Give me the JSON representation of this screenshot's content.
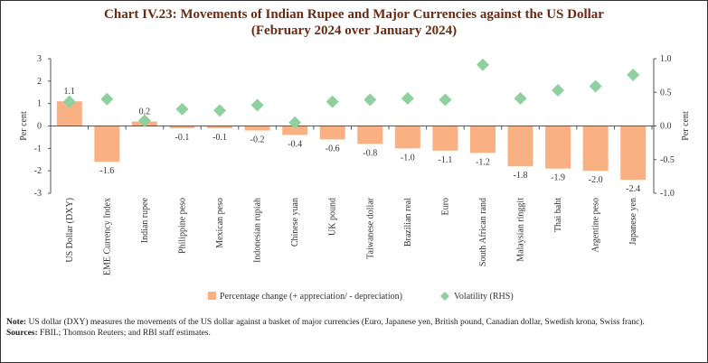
{
  "title_line1": "Chart IV.23: Movements of Indian Rupee and Major Currencies against the US Dollar",
  "title_line2": "(February 2024 over January 2024)",
  "chart_data": {
    "type": "bar+scatter",
    "categories": [
      "US Dollar (DXY)",
      "EME Currency Index",
      "Indian rupee",
      "Philippine peso",
      "Mexican peso",
      "Indonesian rupiah",
      "Chinese yuan",
      "UK pound",
      "Taiwanese dollar",
      "Brazilian real",
      "Euro",
      "South African rand",
      "Malaysian ringgit",
      "Thai baht",
      "Argentine peso",
      "Japanese yen"
    ],
    "series": [
      {
        "name": "Percentage change (+ appreciation/ - depreciation)",
        "type": "bar",
        "axis": "left",
        "color": "#f9b183",
        "values": [
          1.1,
          -1.6,
          0.2,
          -0.1,
          -0.1,
          -0.2,
          -0.4,
          -0.6,
          -0.8,
          -1.0,
          -1.1,
          -1.2,
          -1.8,
          -1.9,
          -2.0,
          -2.4
        ],
        "labels": [
          "1.1",
          "-1.6",
          "0.2",
          "-0.1",
          "-0.1",
          "-0.2",
          "-0.4",
          "-0.6",
          "-0.8",
          "-1.0",
          "-1.1",
          "-1.2",
          "-1.8",
          "-1.9",
          "-2.0",
          "-2.4"
        ]
      },
      {
        "name": "Volatility (RHS)",
        "type": "scatter",
        "marker": "diamond",
        "axis": "right",
        "color": "#8fd19e",
        "values": [
          0.36,
          0.4,
          0.08,
          0.25,
          0.23,
          0.31,
          0.05,
          0.36,
          0.39,
          0.41,
          0.39,
          0.91,
          0.41,
          0.53,
          0.59,
          0.76
        ]
      }
    ],
    "ylabel": "Per cent",
    "y2label": "Per cent",
    "ylim": [
      -3,
      3
    ],
    "yticks": [
      "3",
      "2",
      "1",
      "0",
      "-1",
      "-2",
      "-3"
    ],
    "y2lim": [
      -1.0,
      1.0
    ],
    "y2ticks": [
      "1.0",
      "0.5",
      "0.0",
      "-0.5",
      "-1.0"
    ],
    "grid": false,
    "legend": "bottom"
  },
  "note_label": "Note:",
  "note_text": "US dollar (DXY) measures the movements of the US dollar against a basket of major currencies (Euro, Japanese yen, British pound, Canadian dollar, Swedish krona, Swiss franc).",
  "sources_label": "Sources:",
  "sources_text": "FBIL; Thomson Reuters; and RBI staff estimates."
}
